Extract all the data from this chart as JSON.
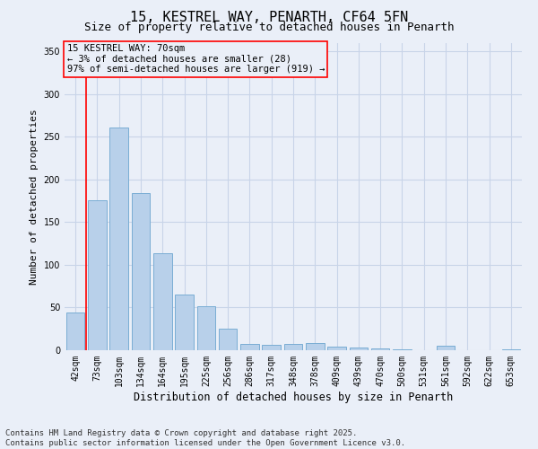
{
  "title": "15, KESTREL WAY, PENARTH, CF64 5FN",
  "subtitle": "Size of property relative to detached houses in Penarth",
  "xlabel": "Distribution of detached houses by size in Penarth",
  "ylabel": "Number of detached properties",
  "categories": [
    "42sqm",
    "73sqm",
    "103sqm",
    "134sqm",
    "164sqm",
    "195sqm",
    "225sqm",
    "256sqm",
    "286sqm",
    "317sqm",
    "348sqm",
    "378sqm",
    "409sqm",
    "439sqm",
    "470sqm",
    "500sqm",
    "531sqm",
    "561sqm",
    "592sqm",
    "622sqm",
    "653sqm"
  ],
  "values": [
    44,
    176,
    261,
    184,
    114,
    65,
    52,
    25,
    7,
    6,
    7,
    8,
    4,
    3,
    2,
    1,
    0,
    5,
    0,
    0,
    1
  ],
  "bar_color": "#b8d0ea",
  "bar_edge_color": "#7aadd4",
  "grid_color": "#c8d4e8",
  "background_color": "#eaeff8",
  "annotation_text": "15 KESTREL WAY: 70sqm\n← 3% of detached houses are smaller (28)\n97% of semi-detached houses are larger (919) →",
  "ylim": [
    0,
    360
  ],
  "yticks": [
    0,
    50,
    100,
    150,
    200,
    250,
    300,
    350
  ],
  "footer_text": "Contains HM Land Registry data © Crown copyright and database right 2025.\nContains public sector information licensed under the Open Government Licence v3.0.",
  "title_fontsize": 11,
  "subtitle_fontsize": 9,
  "annotation_fontsize": 7.5,
  "footer_fontsize": 6.5,
  "ylabel_fontsize": 8,
  "xlabel_fontsize": 8.5,
  "tick_fontsize": 7
}
